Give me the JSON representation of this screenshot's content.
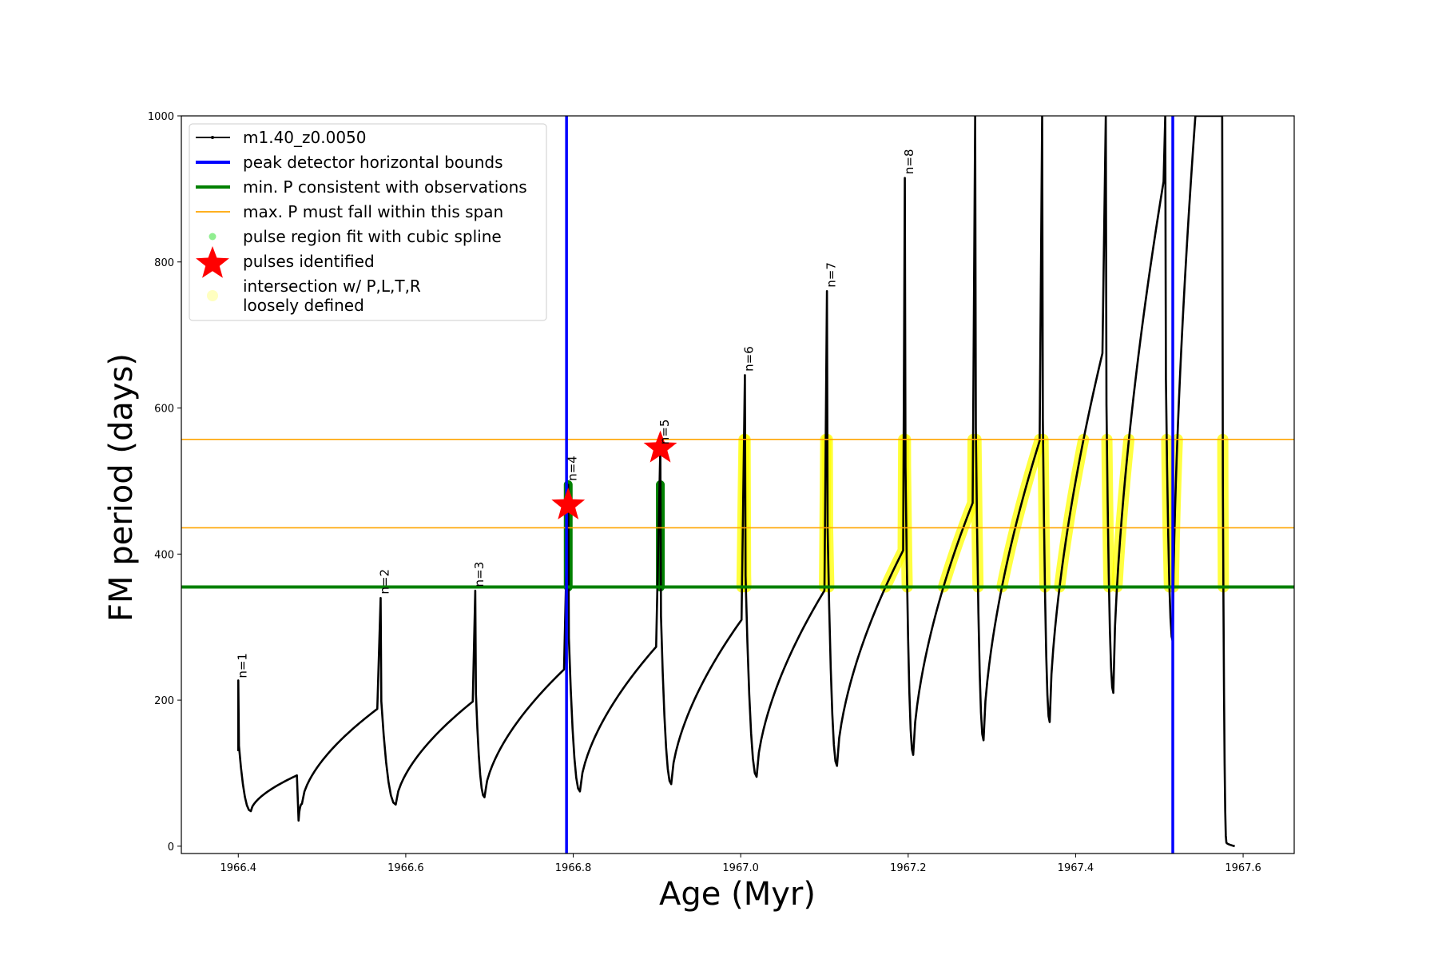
{
  "chart_data": {
    "type": "line",
    "title": "",
    "xlabel": "Age (Myr)",
    "ylabel": "FM period (days)",
    "xlim": [
      1966.332,
      1967.661
    ],
    "ylim": [
      -10,
      1000
    ],
    "xticks": [
      "1966.4",
      "1966.6",
      "1966.8",
      "1967.0",
      "1967.2",
      "1967.4",
      "1967.6"
    ],
    "xtick_values": [
      1966.4,
      1966.6,
      1966.8,
      1967.0,
      1967.2,
      1967.4,
      1967.6
    ],
    "yticks": [
      "0",
      "200",
      "400",
      "600",
      "800",
      "1000"
    ],
    "ytick_values": [
      0,
      200,
      400,
      600,
      800,
      1000
    ],
    "legend_position": "top-left",
    "legend": [
      {
        "label": "m1.40_z0.0050",
        "kind": "line-dot",
        "color": "#000000"
      },
      {
        "label": "peak detector horizontal bounds",
        "kind": "line",
        "color": "#0000ff"
      },
      {
        "label": "min. P consistent with observations",
        "kind": "line",
        "color": "#008000"
      },
      {
        "label": "max. P must fall within this span",
        "kind": "thin-line",
        "color": "#ffa500"
      },
      {
        "label": "pulse region fit with cubic spline",
        "kind": "dot",
        "color": "#90ee90"
      },
      {
        "label": "pulses identified",
        "kind": "star",
        "color": "#ff0000"
      },
      {
        "label": "intersection w/ P,L,T,R",
        "label2": "loosely defined",
        "kind": "dot",
        "color": "#ffffc0"
      }
    ],
    "series_start": [
      1966.4,
      130
    ],
    "cycles_note": "each cycle: [spike_age, spike_period, min_age, min_period, end_age, end_period]",
    "cycles": [
      [
        1966.4,
        227,
        1966.415,
        48,
        1966.47,
        97
      ],
      [
        1966.472,
        35,
        1966.476,
        58,
        1966.566,
        188
      ],
      [
        1966.57,
        340,
        1966.588,
        57,
        1966.68,
        198
      ],
      [
        1966.683,
        350,
        1966.694,
        67,
        1966.789,
        242
      ],
      [
        1966.794,
        495,
        1966.808,
        75,
        1966.899,
        273
      ],
      [
        1966.904,
        545,
        1966.917,
        85,
        1967.001,
        310
      ],
      [
        1967.005,
        645,
        1967.019,
        95,
        1967.1,
        350
      ],
      [
        1967.103,
        760,
        1967.115,
        110,
        1967.194,
        405
      ],
      [
        1967.196,
        915,
        1967.206,
        125,
        1967.277,
        470
      ],
      [
        1967.28,
        1000,
        1967.29,
        145,
        1967.357,
        555
      ],
      [
        1967.36,
        1000,
        1967.369,
        170,
        1967.432,
        675
      ],
      [
        1967.436,
        1000,
        1967.445,
        210,
        1967.505,
        910
      ],
      [
        1967.507,
        1000,
        1967.516,
        280,
        1967.543,
        1000
      ],
      [
        1967.575,
        1000,
        1967.58,
        5,
        1967.59,
        0
      ]
    ],
    "vertical_bounds": [
      1966.792,
      1967.516
    ],
    "min_period": 355,
    "max_period_span": [
      436,
      557
    ],
    "pulses_identified": [
      [
        1966.794,
        467
      ],
      [
        1966.904,
        545
      ]
    ],
    "spline_regions": [
      [
        1966.794,
        355,
        495
      ],
      [
        1966.904,
        355,
        495
      ]
    ],
    "yellow_start_age": 1966.95,
    "n_labels": [
      {
        "text": "n=1",
        "x": 1966.405,
        "y": 230
      },
      {
        "text": "n=2",
        "x": 1966.575,
        "y": 345
      },
      {
        "text": "n=3",
        "x": 1966.688,
        "y": 355
      },
      {
        "text": "n=4",
        "x": 1966.799,
        "y": 500
      },
      {
        "text": "n=5",
        "x": 1966.909,
        "y": 550
      },
      {
        "text": "n=6",
        "x": 1967.01,
        "y": 650
      },
      {
        "text": "n=7",
        "x": 1967.108,
        "y": 765
      },
      {
        "text": "n=8",
        "x": 1967.201,
        "y": 920
      }
    ]
  }
}
